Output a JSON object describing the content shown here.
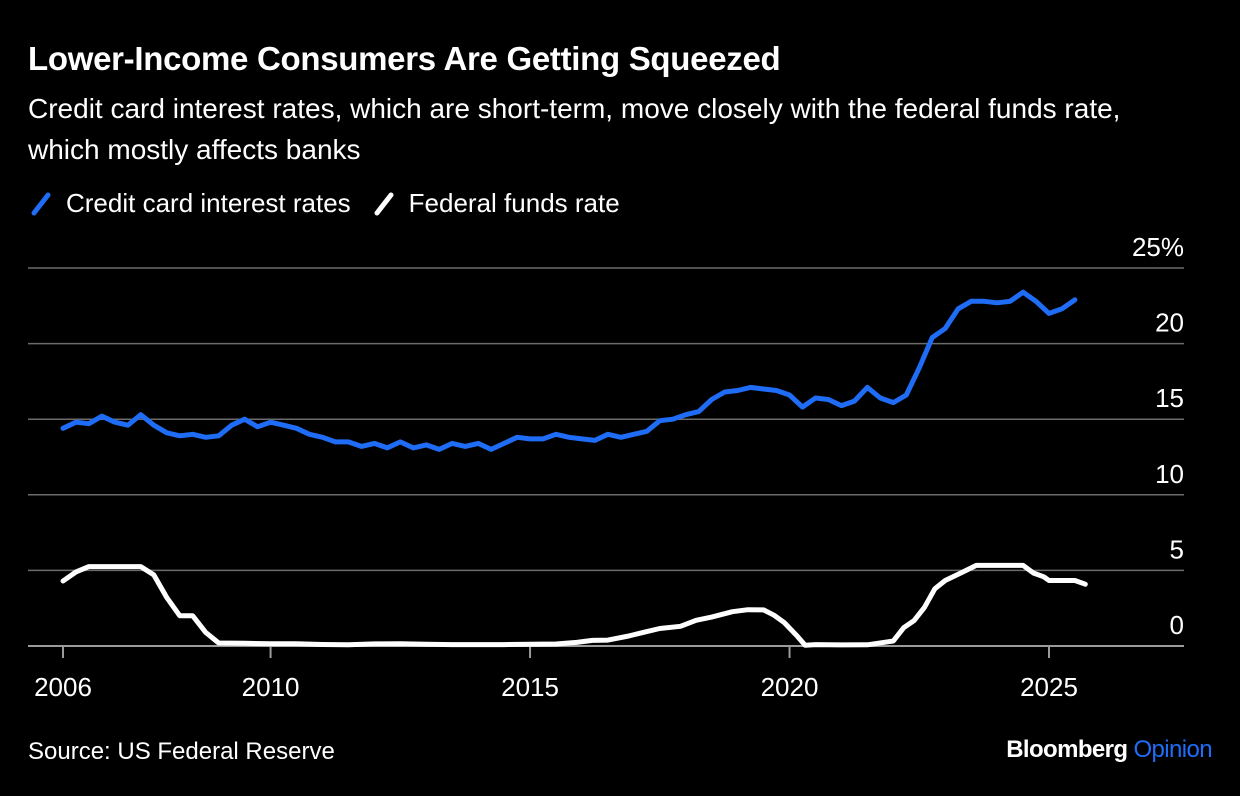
{
  "chart_data": {
    "type": "line",
    "title": "Lower-Income Consumers Are Getting Squeezed",
    "subtitle": "Credit card interest rates, which are short-term, move closely with the federal funds rate, which mostly affects banks",
    "xlabel": "",
    "ylabel": "",
    "xlim": [
      2006.0,
      2027.4
    ],
    "ylim": [
      0,
      25
    ],
    "x_ticks": [
      2006,
      2010,
      2015,
      2020,
      2025
    ],
    "y_ticks": [
      0,
      5,
      10,
      15,
      20,
      25
    ],
    "y_tick_labels": [
      "0",
      "5",
      "10",
      "15",
      "20",
      "25%"
    ],
    "grid": true,
    "legend_position": "top-left",
    "series": [
      {
        "name": "Credit card interest rates",
        "color": "#1f6cf6",
        "x": [
          2006.0,
          2006.25,
          2006.5,
          2006.75,
          2007.0,
          2007.25,
          2007.5,
          2007.75,
          2008.0,
          2008.25,
          2008.5,
          2008.75,
          2009.0,
          2009.25,
          2009.5,
          2009.75,
          2010.0,
          2010.25,
          2010.5,
          2010.75,
          2011.0,
          2011.25,
          2011.5,
          2011.75,
          2012.0,
          2012.25,
          2012.5,
          2012.75,
          2013.0,
          2013.25,
          2013.5,
          2013.75,
          2014.0,
          2014.25,
          2014.5,
          2014.75,
          2015.0,
          2015.25,
          2015.5,
          2015.75,
          2016.0,
          2016.25,
          2016.5,
          2016.75,
          2017.0,
          2017.25,
          2017.5,
          2017.75,
          2018.0,
          2018.25,
          2018.5,
          2018.75,
          2019.0,
          2019.25,
          2019.5,
          2019.75,
          2020.0,
          2020.25,
          2020.5,
          2020.75,
          2021.0,
          2021.25,
          2021.5,
          2021.75,
          2022.0,
          2022.25,
          2022.5,
          2022.75,
          2023.0,
          2023.25,
          2023.5,
          2023.75,
          2024.0,
          2024.25,
          2024.5,
          2024.75,
          2025.0,
          2025.25,
          2025.5
        ],
        "values": [
          14.4,
          14.8,
          14.7,
          15.2,
          14.8,
          14.6,
          15.3,
          14.6,
          14.1,
          13.9,
          14.0,
          13.8,
          13.9,
          14.6,
          15.0,
          14.5,
          14.8,
          14.6,
          14.4,
          14.0,
          13.8,
          13.5,
          13.5,
          13.2,
          13.4,
          13.1,
          13.5,
          13.1,
          13.3,
          13.0,
          13.4,
          13.2,
          13.4,
          13.0,
          13.4,
          13.8,
          13.7,
          13.7,
          14.0,
          13.8,
          13.7,
          13.6,
          14.0,
          13.8,
          14.0,
          14.2,
          14.9,
          15.0,
          15.3,
          15.5,
          16.3,
          16.8,
          16.9,
          17.1,
          17.0,
          16.9,
          16.6,
          15.8,
          16.4,
          16.3,
          15.9,
          16.2,
          17.1,
          16.4,
          16.1,
          16.6,
          18.4,
          20.4,
          21.0,
          22.3,
          22.8,
          22.8,
          22.7,
          22.8,
          23.4,
          22.8,
          22.0,
          22.3,
          22.9
        ]
      },
      {
        "name": "Federal funds rate",
        "color": "#ffffff",
        "x": [
          2006.0,
          2006.25,
          2006.5,
          2006.75,
          2007.0,
          2007.25,
          2007.5,
          2007.75,
          2008.0,
          2008.25,
          2008.5,
          2008.75,
          2009.0,
          2009.5,
          2010.0,
          2010.5,
          2011.0,
          2011.5,
          2012.0,
          2012.5,
          2013.0,
          2013.5,
          2014.0,
          2014.5,
          2015.0,
          2015.5,
          2015.9,
          2016.2,
          2016.5,
          2016.9,
          2017.2,
          2017.5,
          2017.9,
          2018.2,
          2018.5,
          2018.9,
          2019.2,
          2019.5,
          2019.7,
          2019.9,
          2020.15,
          2020.3,
          2020.5,
          2021.0,
          2021.5,
          2022.0,
          2022.2,
          2022.4,
          2022.6,
          2022.8,
          2023.0,
          2023.3,
          2023.6,
          2024.0,
          2024.5,
          2024.7,
          2024.9,
          2025.0,
          2025.5,
          2025.7
        ],
        "values": [
          4.3,
          4.9,
          5.25,
          5.25,
          5.25,
          5.25,
          5.25,
          4.7,
          3.2,
          2.0,
          2.0,
          0.9,
          0.2,
          0.18,
          0.15,
          0.15,
          0.1,
          0.08,
          0.14,
          0.15,
          0.11,
          0.09,
          0.09,
          0.09,
          0.12,
          0.13,
          0.24,
          0.37,
          0.39,
          0.66,
          0.91,
          1.16,
          1.3,
          1.7,
          1.91,
          2.27,
          2.4,
          2.39,
          2.04,
          1.55,
          0.65,
          0.05,
          0.09,
          0.07,
          0.08,
          0.33,
          1.21,
          1.68,
          2.56,
          3.78,
          4.33,
          4.83,
          5.33,
          5.33,
          5.33,
          4.83,
          4.58,
          4.33,
          4.33,
          4.09
        ]
      }
    ],
    "source": "Source: US Federal Reserve",
    "brand": {
      "name": "Bloomberg",
      "section": "Opinion"
    }
  }
}
